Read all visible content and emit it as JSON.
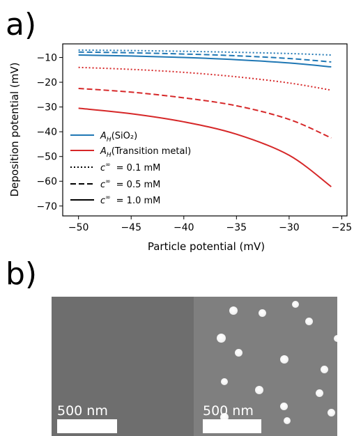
{
  "panel_a_label": "a)",
  "panel_b_label": "b)",
  "chart_data": {
    "type": "line",
    "xlabel": "Particle potential (mV)",
    "ylabel": "Deposition potential (mV)",
    "xlim": [
      -51.5,
      -24.5
    ],
    "ylim": [
      -74,
      -4.5
    ],
    "xticks": [
      -50,
      -45,
      -40,
      -35,
      -30,
      -25
    ],
    "yticks": [
      -10,
      -20,
      -30,
      -40,
      -50,
      -60,
      -70
    ],
    "grid": false,
    "legend_position": "lower-left",
    "legend": {
      "materials": [
        {
          "label_main": "A",
          "label_sub": "H",
          "label_text": "(SiO₂)",
          "color": "#1f77b4",
          "linestyle": "solid"
        },
        {
          "label_main": "A",
          "label_sub": "H",
          "label_text": "(Transition metal)",
          "color": "#d62728",
          "linestyle": "solid"
        }
      ],
      "concentrations": [
        {
          "symbol": "c",
          "sup": "∞",
          "text": "= 0.1 mM",
          "linestyle": "dotted"
        },
        {
          "symbol": "c",
          "sup": "∞",
          "text": "= 0.5 mM",
          "linestyle": "dashed"
        },
        {
          "symbol": "c",
          "sup": "∞",
          "text": "= 1.0 mM",
          "linestyle": "solid"
        }
      ]
    },
    "series": [
      {
        "material": "SiO2",
        "concentration_mM": 0.1,
        "color": "#1f77b4",
        "linestyle": "dotted",
        "x": [
          -50,
          -45,
          -40,
          -35,
          -30,
          -26
        ],
        "y": [
          -7.0,
          -7.2,
          -7.5,
          -7.9,
          -8.4,
          -9.0
        ]
      },
      {
        "material": "SiO2",
        "concentration_mM": 0.5,
        "color": "#1f77b4",
        "linestyle": "dashed",
        "x": [
          -50,
          -45,
          -40,
          -35,
          -30,
          -26
        ],
        "y": [
          -7.8,
          -8.1,
          -8.6,
          -9.3,
          -10.4,
          -11.8
        ]
      },
      {
        "material": "SiO2",
        "concentration_mM": 1.0,
        "color": "#1f77b4",
        "linestyle": "solid",
        "x": [
          -50,
          -45,
          -40,
          -35,
          -30,
          -26
        ],
        "y": [
          -9.0,
          -9.4,
          -10.0,
          -10.9,
          -12.2,
          -13.8
        ]
      },
      {
        "material": "Transition metal",
        "concentration_mM": 0.1,
        "color": "#d62728",
        "linestyle": "dotted",
        "x": [
          -50,
          -45,
          -40,
          -35,
          -30,
          -26
        ],
        "y": [
          -14.0,
          -14.8,
          -16.0,
          -17.8,
          -20.3,
          -23.2
        ]
      },
      {
        "material": "Transition metal",
        "concentration_mM": 0.5,
        "color": "#d62728",
        "linestyle": "dashed",
        "x": [
          -50,
          -45,
          -40,
          -35,
          -30,
          -26
        ],
        "y": [
          -22.5,
          -24.0,
          -26.3,
          -29.5,
          -35.0,
          -42.5
        ]
      },
      {
        "material": "Transition metal",
        "concentration_mM": 1.0,
        "color": "#d62728",
        "linestyle": "solid",
        "x": [
          -50,
          -45,
          -40,
          -35,
          -30,
          -26
        ],
        "y": [
          -30.5,
          -32.7,
          -36.0,
          -41.0,
          -49.5,
          -62.2
        ]
      }
    ]
  },
  "sem_images": [
    {
      "name": "sem-image-bare",
      "scale_bar_label": "500 nm"
    },
    {
      "name": "sem-image-with-particles",
      "scale_bar_label": "500 nm"
    }
  ]
}
